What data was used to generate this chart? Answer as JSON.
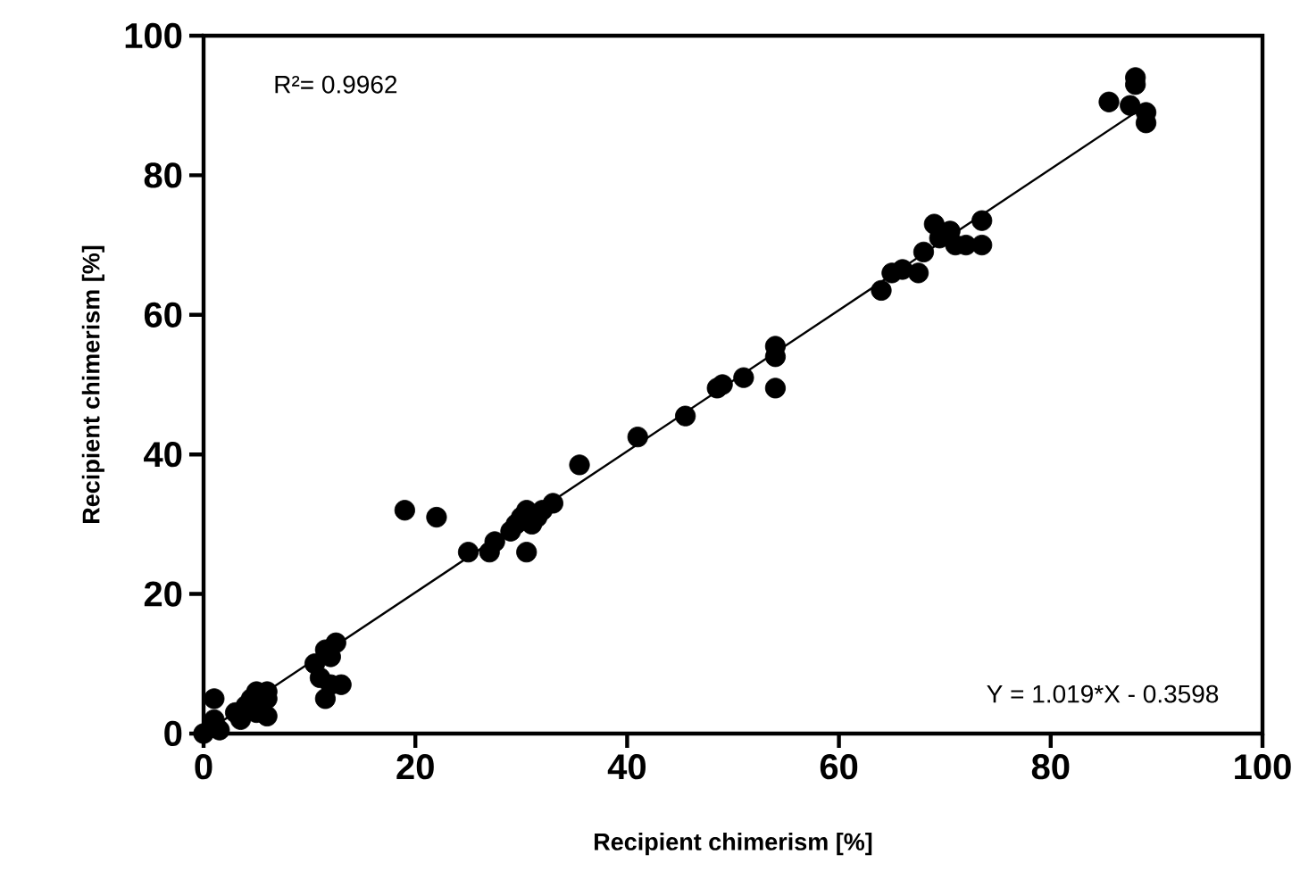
{
  "chart_data": {
    "type": "scatter",
    "xlabel": "Recipient chimerism [%]",
    "ylabel": "Recipient chimerism [%]",
    "annotations": [
      "R²= 0.9962",
      "Y = 1.019*X - 0.3598"
    ],
    "xlim": [
      0,
      100
    ],
    "ylim": [
      0,
      100
    ],
    "xticks": [
      0,
      20,
      40,
      60,
      80,
      100
    ],
    "yticks": [
      0,
      20,
      40,
      60,
      80,
      100
    ],
    "grid": false,
    "marker": "circle",
    "series": [
      {
        "color": "#000000",
        "x": [
          0,
          1,
          1,
          1.5,
          3,
          3.5,
          4,
          4.5,
          5,
          5,
          6,
          6,
          6,
          10.5,
          11,
          11.5,
          12,
          12.5,
          11.5,
          12,
          13,
          19,
          22,
          25,
          27,
          27.5,
          29,
          29.5,
          30,
          30.5,
          31,
          30.5,
          31.5,
          32,
          33,
          35.5,
          41,
          45.5,
          48.5,
          49,
          51,
          54,
          54,
          54,
          64,
          65,
          66,
          67.5,
          68,
          69,
          69.5,
          70.5,
          71,
          72,
          73.5,
          73.5,
          85.5,
          87.5,
          88,
          88,
          89,
          89
        ],
        "values": [
          0,
          5,
          2,
          0.5,
          3,
          2,
          4,
          5,
          6,
          3,
          6,
          2.5,
          5,
          10,
          8,
          12,
          11,
          13,
          5,
          7,
          7,
          32,
          31,
          26,
          26,
          27.5,
          29,
          30,
          31,
          32,
          30,
          26,
          31,
          32,
          33,
          38.5,
          42.5,
          45.5,
          49.5,
          50,
          51,
          54,
          55.5,
          49.5,
          63.5,
          66,
          66.5,
          66,
          69,
          73,
          71,
          72,
          70,
          70,
          73.5,
          70,
          90.5,
          90,
          93,
          94,
          89,
          87.5
        ]
      },
      {
        "type": "line",
        "color": "#000000",
        "marker": "none",
        "line_style": "solid",
        "x": [
          0,
          89
        ],
        "values": [
          0,
          90
        ]
      }
    ]
  }
}
